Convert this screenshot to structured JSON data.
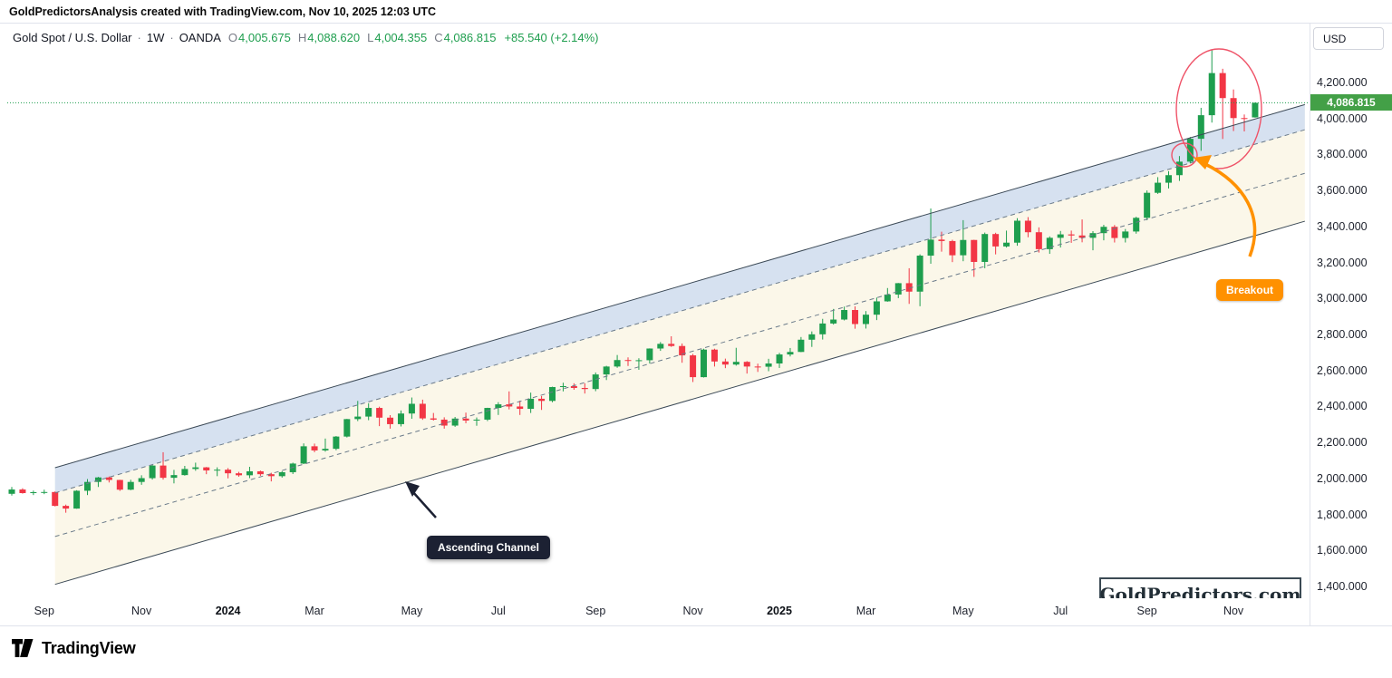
{
  "attribution": "GoldPredictorsAnalysis created with TradingView.com, Nov 10, 2025 12:03 UTC",
  "legend": {
    "symbol": "Gold Spot / U.S. Dollar",
    "separator": "·",
    "interval": "1W",
    "exchange": "OANDA",
    "open_label": "O",
    "open": "4,005.675",
    "high_label": "H",
    "high": "4,088.620",
    "low_label": "L",
    "low": "4,004.355",
    "close_label": "C",
    "close": "4,086.815",
    "change": "+85.540 (+2.14%)"
  },
  "price_axis": {
    "currency_button": "USD",
    "last_price_badge": "4,086.815",
    "ticks": [
      {
        "value": 4200,
        "label": "4,200.000"
      },
      {
        "value": 4000,
        "label": "4,000.000"
      },
      {
        "value": 3800,
        "label": "3,800.000"
      },
      {
        "value": 3600,
        "label": "3,600.000"
      },
      {
        "value": 3400,
        "label": "3,400.000"
      },
      {
        "value": 3200,
        "label": "3,200.000"
      },
      {
        "value": 3000,
        "label": "3,000.000"
      },
      {
        "value": 2800,
        "label": "2,800.000"
      },
      {
        "value": 2600,
        "label": "2,600.000"
      },
      {
        "value": 2400,
        "label": "2,400.000"
      },
      {
        "value": 2200,
        "label": "2,200.000"
      },
      {
        "value": 2000,
        "label": "2,000.000"
      },
      {
        "value": 1800,
        "label": "1,800.000"
      },
      {
        "value": 1600,
        "label": "1,600.000"
      },
      {
        "value": 1400,
        "label": "1,400.000"
      }
    ]
  },
  "time_axis": {
    "ticks": [
      {
        "index": 3,
        "label": "Sep",
        "major": false
      },
      {
        "index": 12,
        "label": "Nov",
        "major": false
      },
      {
        "index": 20,
        "label": "2024",
        "major": true
      },
      {
        "index": 28,
        "label": "Mar",
        "major": false
      },
      {
        "index": 37,
        "label": "May",
        "major": false
      },
      {
        "index": 45,
        "label": "Jul",
        "major": false
      },
      {
        "index": 54,
        "label": "Sep",
        "major": false
      },
      {
        "index": 63,
        "label": "Nov",
        "major": false
      },
      {
        "index": 71,
        "label": "2025",
        "major": true
      },
      {
        "index": 79,
        "label": "Mar",
        "major": false
      },
      {
        "index": 88,
        "label": "May",
        "major": false
      },
      {
        "index": 97,
        "label": "Jul",
        "major": false
      },
      {
        "index": 105,
        "label": "Sep",
        "major": false
      },
      {
        "index": 113,
        "label": "Nov",
        "major": false
      }
    ]
  },
  "annotations": {
    "channel_label": "Ascending Channel",
    "breakout_label": "Breakout",
    "watermark": "GoldPredictors.com"
  },
  "footer": {
    "brand": "TradingView"
  },
  "colors": {
    "up": "#1e9e4e",
    "down": "#f23645",
    "badge_bg": "#43a047",
    "accent_orange": "#ff9100",
    "annotation_red": "#ef5368",
    "label_dark": "#1c2133",
    "channel_fill": "rgba(248,242,219,0.6)",
    "band_fill": "rgba(198,215,242,0.7)",
    "channel_line": "#3c4a57",
    "channel_dash": "#6b7b8a"
  },
  "chart_data": {
    "type": "candlestick",
    "title": "Gold Spot / U.S. Dollar, 1W, OANDA",
    "x_range": [
      "Sep 2023",
      "Nov 2025"
    ],
    "ylim": [
      1335,
      4527
    ],
    "grid": false,
    "last_price": 4086.815,
    "candles": [
      [
        1915,
        1953,
        1905,
        1939
      ],
      [
        1939,
        1946,
        1916,
        1919
      ],
      [
        1919,
        1933,
        1908,
        1924
      ],
      [
        1924,
        1938,
        1913,
        1925
      ],
      [
        1925,
        1928,
        1845,
        1848
      ],
      [
        1848,
        1855,
        1810,
        1833
      ],
      [
        1833,
        1935,
        1832,
        1932
      ],
      [
        1932,
        1997,
        1908,
        1981
      ],
      [
        1981,
        2009,
        1953,
        2006
      ],
      [
        2006,
        2011,
        1978,
        1992
      ],
      [
        1992,
        1993,
        1931,
        1938
      ],
      [
        1938,
        1993,
        1935,
        1981
      ],
      [
        1981,
        2018,
        1965,
        2002
      ],
      [
        2002,
        2075,
        1994,
        2072
      ],
      [
        2072,
        2146,
        1994,
        2004
      ],
      [
        2004,
        2048,
        1973,
        2019
      ],
      [
        2019,
        2070,
        2016,
        2053
      ],
      [
        2053,
        2088,
        2043,
        2062
      ],
      [
        2062,
        2064,
        2024,
        2045
      ],
      [
        2045,
        2062,
        2013,
        2049
      ],
      [
        2049,
        2058,
        2001,
        2029
      ],
      [
        2029,
        2037,
        2010,
        2018
      ],
      [
        2018,
        2065,
        2002,
        2040
      ],
      [
        2040,
        2044,
        2015,
        2024
      ],
      [
        2024,
        2032,
        1984,
        2013
      ],
      [
        2013,
        2041,
        2005,
        2035
      ],
      [
        2035,
        2088,
        2025,
        2083
      ],
      [
        2083,
        2195,
        2080,
        2179
      ],
      [
        2179,
        2194,
        2146,
        2156
      ],
      [
        2156,
        2222,
        2149,
        2165
      ],
      [
        2165,
        2236,
        2157,
        2233
      ],
      [
        2233,
        2331,
        2228,
        2330
      ],
      [
        2330,
        2431,
        2319,
        2344
      ],
      [
        2344,
        2418,
        2324,
        2392
      ],
      [
        2392,
        2399,
        2291,
        2338
      ],
      [
        2338,
        2352,
        2277,
        2302
      ],
      [
        2302,
        2378,
        2289,
        2361
      ],
      [
        2361,
        2450,
        2332,
        2415
      ],
      [
        2415,
        2438,
        2326,
        2334
      ],
      [
        2334,
        2364,
        2322,
        2327
      ],
      [
        2327,
        2340,
        2277,
        2294
      ],
      [
        2294,
        2342,
        2287,
        2333
      ],
      [
        2333,
        2366,
        2307,
        2322
      ],
      [
        2322,
        2339,
        2293,
        2327
      ],
      [
        2327,
        2393,
        2319,
        2392
      ],
      [
        2392,
        2424,
        2353,
        2412
      ],
      [
        2412,
        2484,
        2384,
        2400
      ],
      [
        2400,
        2432,
        2353,
        2387
      ],
      [
        2387,
        2477,
        2364,
        2443
      ],
      [
        2443,
        2458,
        2381,
        2431
      ],
      [
        2431,
        2510,
        2424,
        2508
      ],
      [
        2508,
        2532,
        2484,
        2513
      ],
      [
        2513,
        2529,
        2493,
        2503
      ],
      [
        2503,
        2529,
        2472,
        2497
      ],
      [
        2497,
        2589,
        2485,
        2578
      ],
      [
        2578,
        2626,
        2547,
        2622
      ],
      [
        2622,
        2686,
        2615,
        2658
      ],
      [
        2658,
        2673,
        2625,
        2654
      ],
      [
        2654,
        2668,
        2604,
        2657
      ],
      [
        2657,
        2723,
        2639,
        2722
      ],
      [
        2722,
        2758,
        2709,
        2748
      ],
      [
        2748,
        2790,
        2731,
        2736
      ],
      [
        2736,
        2750,
        2643,
        2684
      ],
      [
        2684,
        2692,
        2536,
        2563
      ],
      [
        2563,
        2721,
        2561,
        2716
      ],
      [
        2716,
        2721,
        2622,
        2650
      ],
      [
        2650,
        2666,
        2613,
        2633
      ],
      [
        2633,
        2726,
        2627,
        2648
      ],
      [
        2648,
        2652,
        2583,
        2622
      ],
      [
        2622,
        2638,
        2592,
        2621
      ],
      [
        2621,
        2665,
        2596,
        2639
      ],
      [
        2639,
        2698,
        2614,
        2689
      ],
      [
        2689,
        2725,
        2678,
        2703
      ],
      [
        2703,
        2786,
        2702,
        2771
      ],
      [
        2771,
        2817,
        2731,
        2801
      ],
      [
        2801,
        2887,
        2772,
        2861
      ],
      [
        2861,
        2942,
        2855,
        2883
      ],
      [
        2883,
        2955,
        2878,
        2936
      ],
      [
        2936,
        2956,
        2832,
        2858
      ],
      [
        2858,
        2930,
        2833,
        2910
      ],
      [
        2910,
        3005,
        2880,
        2984
      ],
      [
        2984,
        3058,
        2982,
        3022
      ],
      [
        3022,
        3086,
        3002,
        3085
      ],
      [
        3085,
        3168,
        2970,
        3038
      ],
      [
        3038,
        3245,
        2957,
        3238
      ],
      [
        3238,
        3500,
        3193,
        3327
      ],
      [
        3327,
        3371,
        3260,
        3319
      ],
      [
        3319,
        3326,
        3202,
        3240
      ],
      [
        3240,
        3435,
        3207,
        3325
      ],
      [
        3325,
        3326,
        3120,
        3203
      ],
      [
        3203,
        3366,
        3168,
        3358
      ],
      [
        3358,
        3365,
        3245,
        3289
      ],
      [
        3289,
        3377,
        3283,
        3310
      ],
      [
        3310,
        3446,
        3293,
        3432
      ],
      [
        3432,
        3452,
        3340,
        3368
      ],
      [
        3368,
        3395,
        3255,
        3274
      ],
      [
        3274,
        3345,
        3248,
        3337
      ],
      [
        3337,
        3375,
        3283,
        3356
      ],
      [
        3356,
        3377,
        3309,
        3350
      ],
      [
        3350,
        3439,
        3312,
        3337
      ],
      [
        3337,
        3374,
        3268,
        3363
      ],
      [
        3363,
        3409,
        3323,
        3398
      ],
      [
        3398,
        3408,
        3311,
        3336
      ],
      [
        3336,
        3386,
        3311,
        3372
      ],
      [
        3372,
        3454,
        3360,
        3448
      ],
      [
        3448,
        3600,
        3435,
        3587
      ],
      [
        3587,
        3674,
        3581,
        3643
      ],
      [
        3643,
        3707,
        3611,
        3685
      ],
      [
        3685,
        3791,
        3653,
        3760
      ],
      [
        3760,
        3897,
        3750,
        3887
      ],
      [
        3887,
        4059,
        3820,
        4018
      ],
      [
        4018,
        4380,
        3977,
        4252
      ],
      [
        4252,
        4276,
        3886,
        4113
      ],
      [
        4113,
        4161,
        3930,
        4002
      ],
      [
        4002,
        4022,
        3928,
        4001
      ],
      [
        4005.675,
        4088.62,
        4004.355,
        4086.815
      ]
    ],
    "channel": {
      "label": "Ascending Channel",
      "start_index": 4,
      "end_index": 119.6,
      "slope_per_bar": 17.45,
      "upper_base": 2060,
      "upper_dash_base": 1920,
      "mid_dash_base": 1678,
      "lower_base": 1412
    }
  }
}
